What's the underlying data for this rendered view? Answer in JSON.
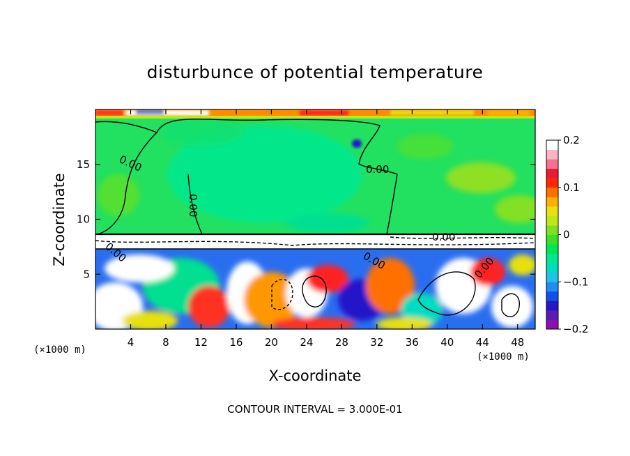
{
  "chart_data": {
    "type": "heatmap",
    "title": "disturbunce of potential temperature",
    "xlabel": "X-coordinate",
    "ylabel": "Z-coordinate",
    "x_unit": "(×1000 m)",
    "y_unit": "(×1000 m)",
    "xlim": [
      0,
      50
    ],
    "ylim": [
      0,
      20
    ],
    "x_ticks": [
      4,
      8,
      12,
      16,
      20,
      24,
      28,
      32,
      36,
      40,
      44,
      48
    ],
    "x_tick_labels": [
      "4",
      "8",
      "12",
      "16",
      "20",
      "24",
      "28",
      "32",
      "36",
      "40",
      "44",
      "48"
    ],
    "y_ticks": [
      5,
      10,
      15
    ],
    "y_tick_labels": [
      "5",
      "10",
      "15"
    ],
    "colorbar": {
      "min": -0.2,
      "max": 0.2,
      "ticks": [
        0.2,
        0.1,
        0,
        -0.1,
        -0.2
      ],
      "tick_labels": [
        "0.2",
        "0.1",
        "0",
        "−0.1",
        "−0.2"
      ],
      "colors": [
        "#8a10b0",
        "#5a1ab4",
        "#2418c8",
        "#1050e8",
        "#1e8cf0",
        "#20c0e8",
        "#00dcc0",
        "#00e890",
        "#00e650",
        "#3ae028",
        "#7fe020",
        "#c0e818",
        "#e8e010",
        "#ffb000",
        "#ff7000",
        "#ff2800",
        "#e61e32",
        "#f87090",
        "#fcb4c4",
        "#ffffff"
      ]
    },
    "contour_labels": [
      "0.00",
      "0.00",
      "0.00",
      "0.00",
      "0.00",
      "0.00",
      "0.00"
    ],
    "annotation": "CONTOUR INTERVAL = 3.000E-01"
  }
}
